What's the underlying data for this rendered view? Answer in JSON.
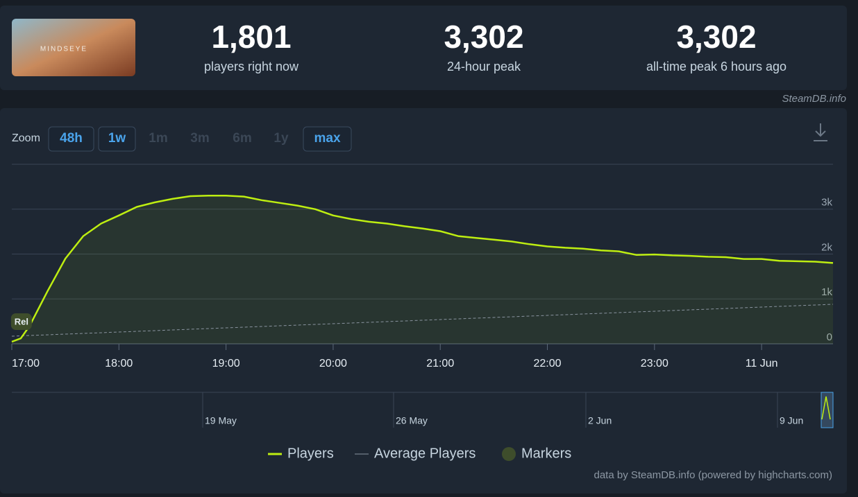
{
  "header": {
    "image_text": "MINDSEYE",
    "stats": [
      {
        "value": "1,801",
        "label": "players right now"
      },
      {
        "value": "3,302",
        "label": "24-hour peak"
      },
      {
        "value": "3,302",
        "label": "all-time peak 6 hours ago"
      }
    ],
    "watermark": "SteamDB.info"
  },
  "zoom": {
    "label": "Zoom",
    "buttons": [
      {
        "text": "48h",
        "enabled": true
      },
      {
        "text": "1w",
        "enabled": true
      },
      {
        "text": "1m",
        "enabled": false
      },
      {
        "text": "3m",
        "enabled": false
      },
      {
        "text": "6m",
        "enabled": false
      },
      {
        "text": "1y",
        "enabled": false
      },
      {
        "text": "max",
        "enabled": true
      }
    ]
  },
  "chart_data": {
    "type": "line",
    "x": [
      "17:00",
      "17:05",
      "17:10",
      "17:20",
      "17:30",
      "17:40",
      "17:50",
      "18:00",
      "18:10",
      "18:20",
      "18:30",
      "18:40",
      "18:50",
      "19:00",
      "19:10",
      "19:20",
      "19:30",
      "19:40",
      "19:50",
      "20:00",
      "20:10",
      "20:20",
      "20:30",
      "20:40",
      "20:50",
      "21:00",
      "21:10",
      "21:20",
      "21:30",
      "21:40",
      "21:50",
      "22:00",
      "22:10",
      "22:20",
      "22:30",
      "22:40",
      "22:50",
      "23:00",
      "23:10",
      "23:20",
      "23:30",
      "23:40",
      "23:50",
      "00:00",
      "00:10",
      "00:20",
      "00:30",
      "00:40"
    ],
    "series": [
      {
        "name": "Players",
        "color": "#beee11",
        "values": [
          46,
          120,
          400,
          1170,
          1900,
          2400,
          2680,
          2860,
          3050,
          3150,
          3230,
          3290,
          3302,
          3300,
          3280,
          3200,
          3140,
          3080,
          3000,
          2860,
          2780,
          2720,
          2680,
          2620,
          2570,
          2510,
          2400,
          2360,
          2320,
          2280,
          2220,
          2170,
          2140,
          2120,
          2080,
          2060,
          1980,
          1990,
          1970,
          1960,
          1940,
          1930,
          1890,
          1890,
          1850,
          1840,
          1830,
          1801
        ]
      },
      {
        "name": "Average Players",
        "color": "#8a94a0",
        "dashed": true,
        "x": [
          "17:00",
          "00:40"
        ],
        "values": [
          170,
          880
        ]
      }
    ],
    "markers": {
      "name": "Markers",
      "color": "#3e4d2b",
      "points": [
        {
          "x": "17:05",
          "label": "Rel"
        }
      ]
    },
    "xlim": [
      "17:00",
      "00:40"
    ],
    "xticks": [
      "17:00",
      "18:00",
      "19:00",
      "20:00",
      "21:00",
      "22:00",
      "23:00",
      {
        "value": "00:00",
        "label": "11 Jun"
      }
    ],
    "ylim": [
      0,
      4000
    ],
    "yticks": [
      0,
      {
        "value": 1000,
        "label": "1k"
      },
      {
        "value": 2000,
        "label": "2k"
      },
      {
        "value": 3000,
        "label": "3k"
      }
    ],
    "grid": true,
    "navigator": [
      "19 May",
      "26 May",
      "2 Jun",
      "9 Jun"
    ],
    "credit": "data by SteamDB.info (powered by highcharts.com)"
  }
}
